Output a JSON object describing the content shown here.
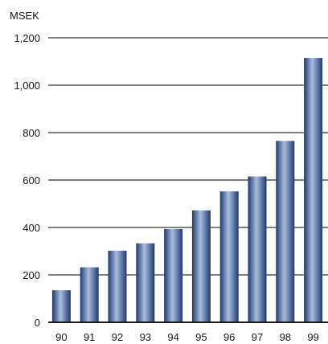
{
  "chart_data": {
    "type": "bar",
    "unit_label": "MSEK",
    "categories": [
      "90",
      "91",
      "92",
      "93",
      "94",
      "95",
      "96",
      "97",
      "98",
      "99"
    ],
    "values": [
      135,
      232,
      302,
      333,
      393,
      472,
      552,
      615,
      765,
      1115
    ],
    "ylim": [
      0,
      1200
    ],
    "yticks": [
      0,
      200,
      400,
      600,
      800,
      1000,
      1200
    ],
    "ytick_labels": [
      "0",
      "200",
      "400",
      "600",
      "800",
      "1,000",
      "1,200"
    ],
    "grid": true,
    "legend": "none",
    "colors": {
      "bar_dark": "#1f3a6e",
      "bar_mid": "#4a6aa6",
      "bar_light": "#a8bde0",
      "grid": "#000000",
      "baseline": "#1a1a1a"
    }
  }
}
